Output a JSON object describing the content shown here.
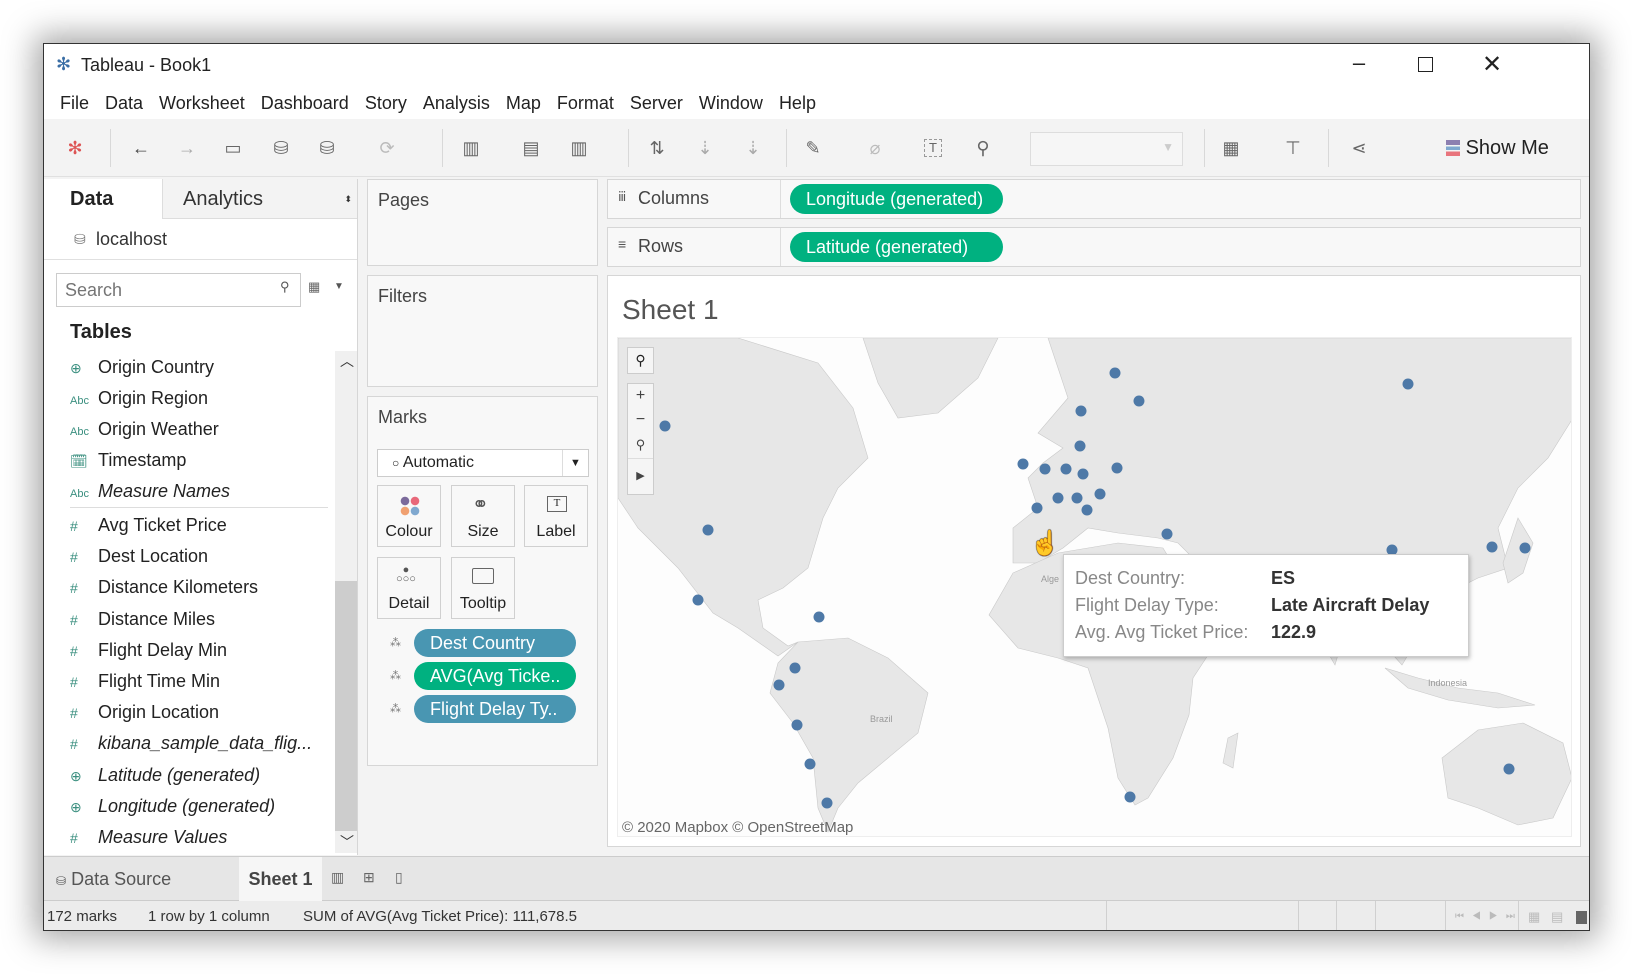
{
  "window": {
    "title": "Tableau - Book1"
  },
  "menu": [
    "File",
    "Data",
    "Worksheet",
    "Dashboard",
    "Story",
    "Analysis",
    "Map",
    "Format",
    "Server",
    "Window",
    "Help"
  ],
  "toolbar": {
    "show_me": "Show Me"
  },
  "data_pane": {
    "tabs": [
      "Data",
      "Analytics"
    ],
    "connection": "localhost",
    "search_placeholder": "Search",
    "tables_heading": "Tables",
    "dimensions": [
      {
        "label": "Origin Country",
        "icon": "globe-icon",
        "italic": false
      },
      {
        "label": "Origin Region",
        "icon": "abc-icon",
        "italic": false
      },
      {
        "label": "Origin Weather",
        "icon": "abc-icon",
        "italic": false
      },
      {
        "label": "Timestamp",
        "icon": "datetime-icon",
        "italic": false
      },
      {
        "label": "Measure Names",
        "icon": "abc-icon",
        "italic": true
      }
    ],
    "measures": [
      {
        "label": "Avg Ticket Price",
        "icon": "number-icon",
        "italic": false
      },
      {
        "label": "Dest Location",
        "icon": "number-icon",
        "italic": false
      },
      {
        "label": "Distance Kilometers",
        "icon": "number-icon",
        "italic": false
      },
      {
        "label": "Distance Miles",
        "icon": "number-icon",
        "italic": false
      },
      {
        "label": "Flight Delay Min",
        "icon": "number-icon",
        "italic": false
      },
      {
        "label": "Flight Time Min",
        "icon": "number-icon",
        "italic": false
      },
      {
        "label": "Origin Location",
        "icon": "number-icon",
        "italic": false
      },
      {
        "label": "kibana_sample_data_flig...",
        "icon": "number-icon",
        "italic": true
      },
      {
        "label": "Latitude (generated)",
        "icon": "globe-icon",
        "italic": true
      },
      {
        "label": "Longitude (generated)",
        "icon": "globe-icon",
        "italic": true
      },
      {
        "label": "Measure Values",
        "icon": "number-icon",
        "italic": true
      }
    ]
  },
  "cards": {
    "pages": "Pages",
    "filters": "Filters",
    "marks": "Marks"
  },
  "marks": {
    "type": "Automatic",
    "buttons": [
      "Colour",
      "Size",
      "Label",
      "Detail",
      "Tooltip"
    ],
    "pills": [
      {
        "label": "Dest Country",
        "color": "#4996b2"
      },
      {
        "label": "AVG(Avg Ticke..",
        "color": "#00b180"
      },
      {
        "label": "Flight Delay Ty..",
        "color": "#4996b2"
      }
    ]
  },
  "shelves": {
    "columns_label": "Columns",
    "columns_pill": "Longitude (generated)",
    "rows_label": "Rows",
    "rows_pill": "Latitude (generated)"
  },
  "view": {
    "sheet_title": "Sheet 1",
    "attribution": "© 2020 Mapbox © OpenStreetMap",
    "map_labels": [
      "Brazil",
      "Indonesia",
      "Alge"
    ],
    "mark_color": "#4e79a7",
    "tooltip": [
      {
        "key": "Dest Country:",
        "value": "ES"
      },
      {
        "key": "Flight Delay Type:",
        "value": "Late Aircraft Delay"
      },
      {
        "key": "Avg. Avg Ticket Price:",
        "value": "122.9"
      }
    ]
  },
  "sheet_tabs": {
    "data_source": "Data Source",
    "sheet": "Sheet 1"
  },
  "status": {
    "marks": "172 marks",
    "dims": "1 row by 1 column",
    "sum": "SUM of AVG(Avg Ticket Price): 111,678.5"
  }
}
